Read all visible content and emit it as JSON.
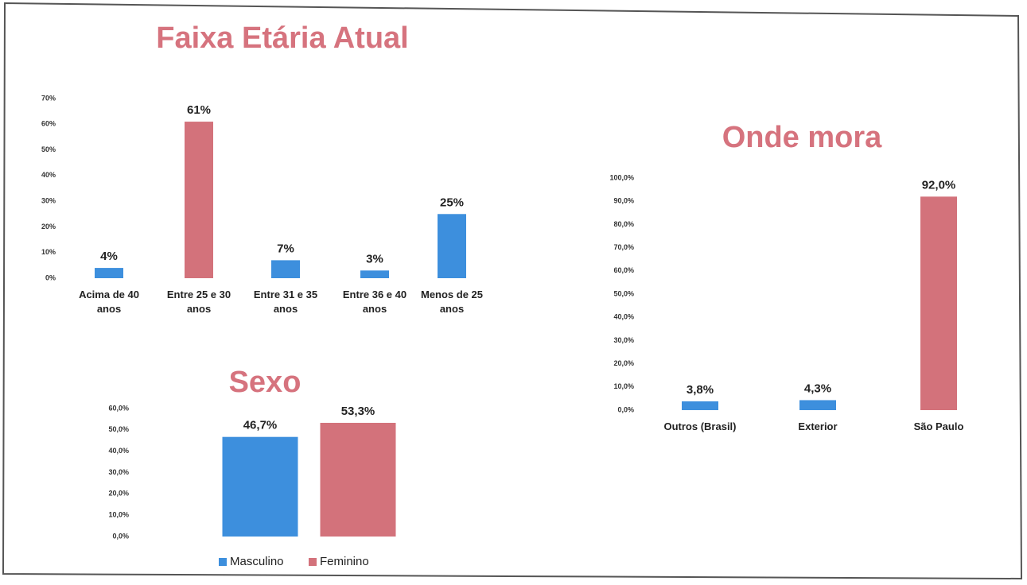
{
  "chart_data": [
    {
      "type": "bar",
      "title": "Faixa Etária Atual",
      "categories": [
        "Acima de 40 anos",
        "Entre 25 e 30 anos",
        "Entre 31 e 35 anos",
        "Entre 36 e 40 anos",
        "Menos de 25 anos"
      ],
      "values": [
        4,
        61,
        7,
        3,
        25
      ],
      "value_labels": [
        "4%",
        "61%",
        "7%",
        "3%",
        "25%"
      ],
      "colors": [
        "#3d8fdd",
        "#d3727b",
        "#3d8fdd",
        "#3d8fdd",
        "#3d8fdd"
      ],
      "ylim": [
        0,
        70
      ],
      "yticks": [
        {
          "value": 0,
          "label": "0%"
        },
        {
          "value": 10,
          "label": "10%"
        },
        {
          "value": 20,
          "label": "20%"
        },
        {
          "value": 30,
          "label": "30%"
        },
        {
          "value": 40,
          "label": "40%"
        },
        {
          "value": 50,
          "label": "50%"
        },
        {
          "value": 60,
          "label": "60%"
        },
        {
          "value": 70,
          "label": "70%"
        }
      ]
    },
    {
      "type": "bar",
      "title": "Onde mora",
      "categories": [
        "Outros (Brasil)",
        "Exterior",
        "São Paulo"
      ],
      "values": [
        3.8,
        4.3,
        92.0
      ],
      "value_labels": [
        "3,8%",
        "4,3%",
        "92,0%"
      ],
      "colors": [
        "#3d8fdd",
        "#3d8fdd",
        "#d3727b"
      ],
      "ylim": [
        0,
        100
      ],
      "yticks": [
        {
          "value": 0,
          "label": "0,0%"
        },
        {
          "value": 10,
          "label": "10,0%"
        },
        {
          "value": 20,
          "label": "20,0%"
        },
        {
          "value": 30,
          "label": "30,0%"
        },
        {
          "value": 40,
          "label": "40,0%"
        },
        {
          "value": 50,
          "label": "50,0%"
        },
        {
          "value": 60,
          "label": "60,0%"
        },
        {
          "value": 70,
          "label": "70,0%"
        },
        {
          "value": 80,
          "label": "80,0%"
        },
        {
          "value": 90,
          "label": "90,0%"
        },
        {
          "value": 100,
          "label": "100,0%"
        }
      ]
    },
    {
      "type": "bar",
      "title": "Sexo",
      "series": [
        {
          "name": "Masculino",
          "color": "#3d8fdd",
          "values": [
            46.7
          ],
          "value_labels": [
            "46,7%"
          ]
        },
        {
          "name": "Feminino",
          "color": "#d3727b",
          "values": [
            53.3
          ],
          "value_labels": [
            "53,3%"
          ]
        }
      ],
      "ylim": [
        0,
        60
      ],
      "yticks": [
        {
          "value": 0,
          "label": "0,0%"
        },
        {
          "value": 10,
          "label": "10,0%"
        },
        {
          "value": 20,
          "label": "20,0%"
        },
        {
          "value": 30,
          "label": "30,0%"
        },
        {
          "value": 40,
          "label": "40,0%"
        },
        {
          "value": 50,
          "label": "50,0%"
        },
        {
          "value": 60,
          "label": "60,0%"
        }
      ],
      "legend": "bottom"
    }
  ]
}
